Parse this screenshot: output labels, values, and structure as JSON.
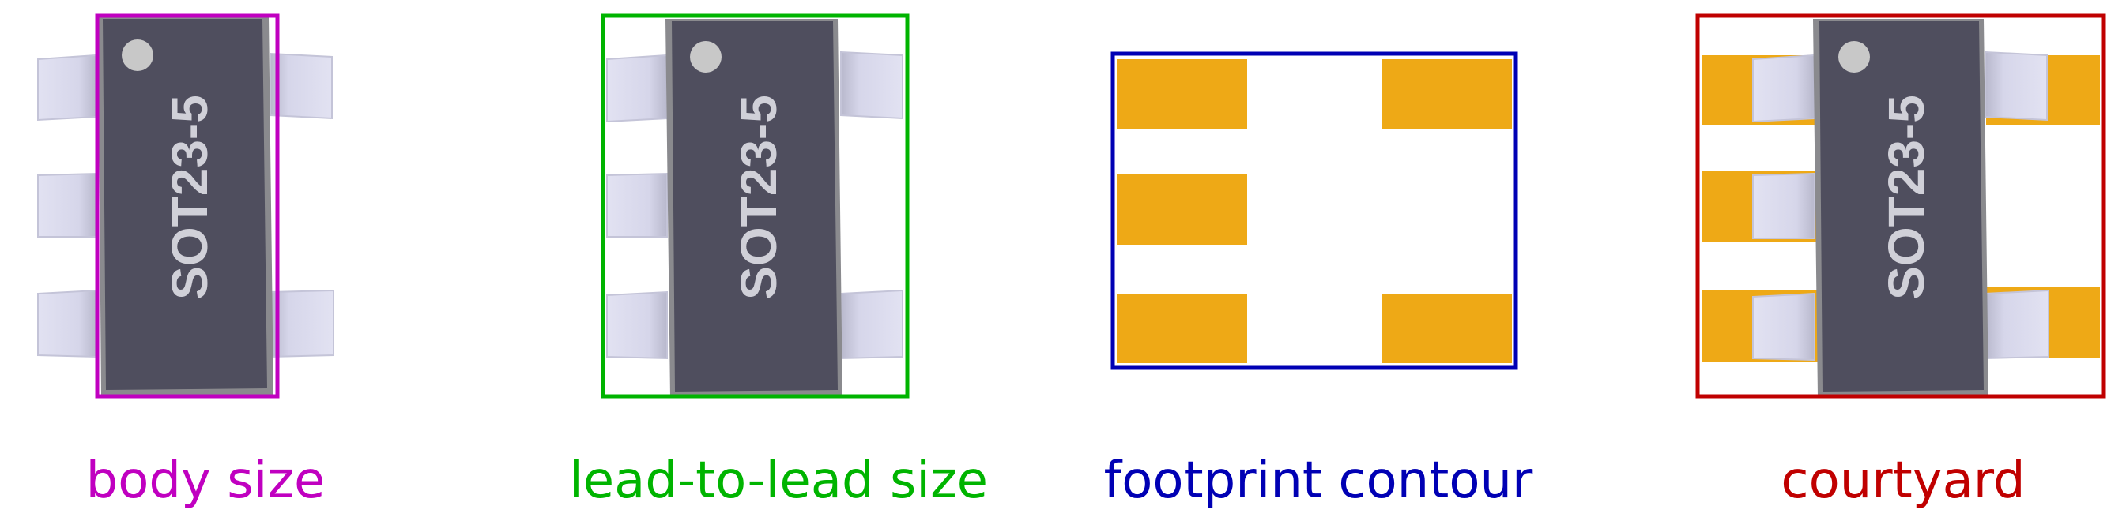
{
  "panels": [
    {
      "caption": "body size",
      "caption_color": "#c000c0",
      "chip_label": "SOT23-5",
      "outline_color": "#c000c0",
      "outline_meaning": "body"
    },
    {
      "caption": "lead-to-lead size",
      "caption_color": "#00b400",
      "chip_label": "SOT23-5",
      "outline_color": "#00b400",
      "outline_meaning": "lead-to-lead"
    },
    {
      "caption": "footprint contour",
      "caption_color": "#0000b4",
      "outline_color": "#0000b4",
      "outline_meaning": "footprint"
    },
    {
      "caption": "courtyard",
      "caption_color": "#c00000",
      "chip_label": "SOT23-5",
      "outline_color": "#c00000",
      "outline_meaning": "courtyard"
    }
  ],
  "colors": {
    "body": "#4f4e5e",
    "body_edge": "#8a8a8e",
    "lead": "#d8d8ee",
    "pad": "#eea916",
    "pin1_dot": "#c8c8c8"
  }
}
